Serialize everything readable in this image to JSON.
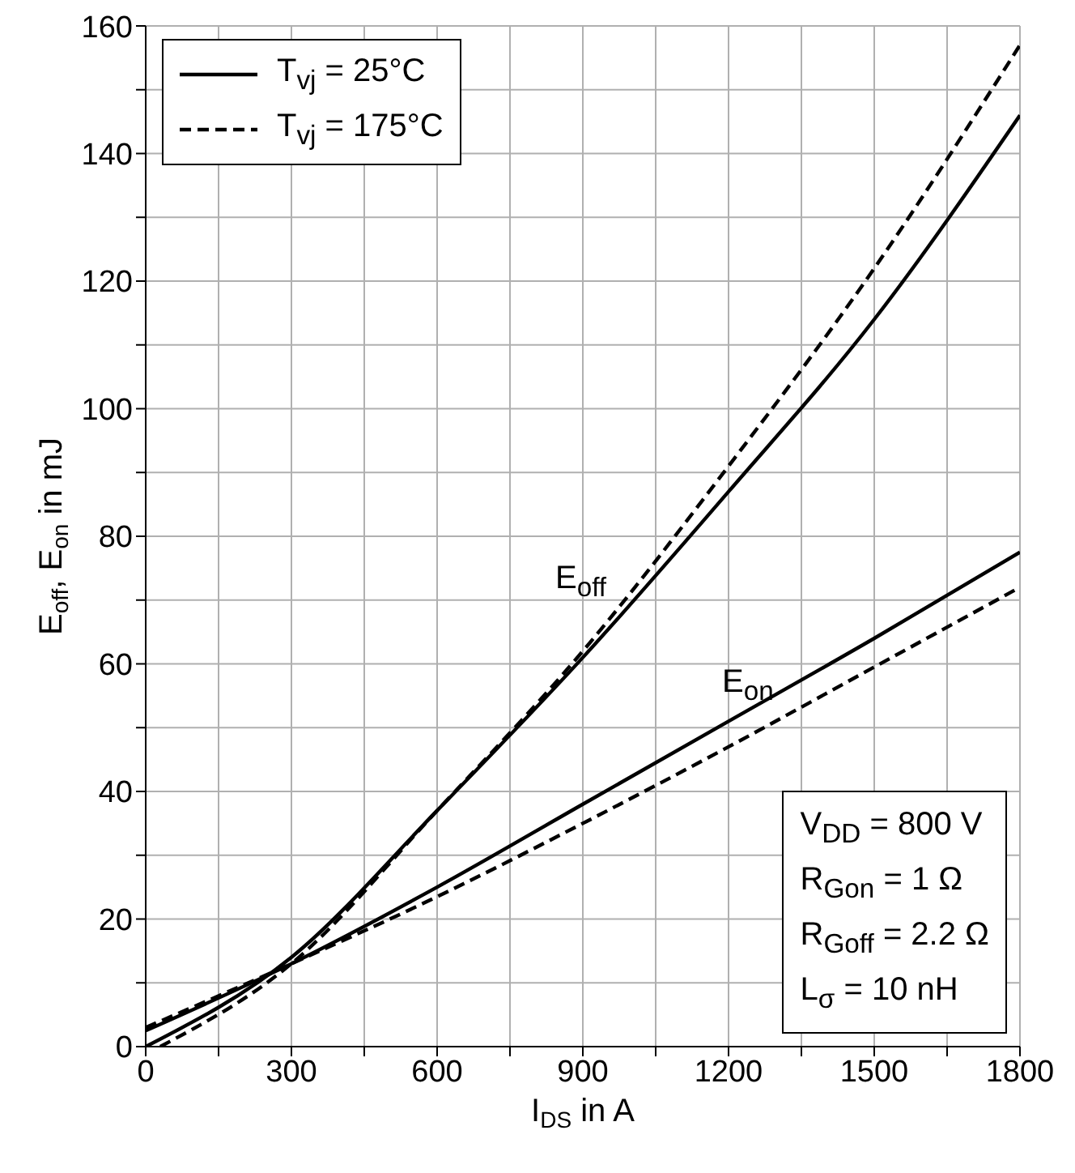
{
  "chart_data": {
    "type": "line",
    "xlabel": "I$_{DS}$ in A",
    "ylabel": "E$_{off}$, E$_{on}$ in mJ",
    "xlim": [
      0,
      1800
    ],
    "ylim": [
      0,
      160
    ],
    "xticks": [
      0,
      {
        "value": 150,
        "label": null
      },
      300,
      {
        "value": 450,
        "label": null
      },
      600,
      {
        "value": 750,
        "label": null
      },
      900,
      {
        "value": 1050,
        "label": null
      },
      1200,
      {
        "value": 1350,
        "label": null
      },
      1500,
      {
        "value": 1650,
        "label": null
      },
      1800
    ],
    "yticks": [
      0,
      {
        "value": 10,
        "label": null
      },
      20,
      {
        "value": 30,
        "label": null
      },
      40,
      {
        "value": 50,
        "label": null
      },
      60,
      {
        "value": 70,
        "label": null
      },
      80,
      {
        "value": 90,
        "label": null
      },
      100,
      {
        "value": 110,
        "label": null
      },
      120,
      {
        "value": 130,
        "label": null
      },
      140,
      {
        "value": 150,
        "label": null
      },
      160
    ],
    "grid": true,
    "legend": "top left",
    "marker": "none",
    "series": [
      {
        "name": "T$_{vj}$ = 25°C",
        "color": "#000000",
        "line_style": "solid",
        "x": [
          0,
          300,
          600,
          900,
          1200,
          1500,
          1800
        ],
        "values": [
          0,
          14,
          37,
          61,
          87,
          114,
          146
        ]
      },
      {
        "name": "T$_{vj}$ = 175°C",
        "color": "#000000",
        "line_style": "dashed",
        "x": [
          30,
          300,
          600,
          900,
          1200,
          1500,
          1800
        ],
        "values": [
          0,
          13,
          37,
          62,
          91,
          122,
          157
        ]
      },
      {
        "color": "#000000",
        "line_style": "solid",
        "x": [
          0,
          300,
          600,
          900,
          1200,
          1500,
          1800
        ],
        "values": [
          2.5,
          13,
          25,
          38,
          51,
          64,
          77.5
        ]
      },
      {
        "color": "#000000",
        "line_style": "dashed",
        "x": [
          0,
          300,
          600,
          900,
          1200,
          1500,
          1800
        ],
        "values": [
          3,
          13,
          23.5,
          35,
          47,
          59.5,
          72
        ]
      }
    ],
    "annotations": [
      "E$_{off}$",
      "E$_{on}$",
      "V$_{DD}$ = 800 V",
      "R$_{Gon}$ = 1 Ω",
      "R$_{Goff}$ = 2.2 Ω",
      "L$_{σ}$ = 10 nH"
    ]
  }
}
